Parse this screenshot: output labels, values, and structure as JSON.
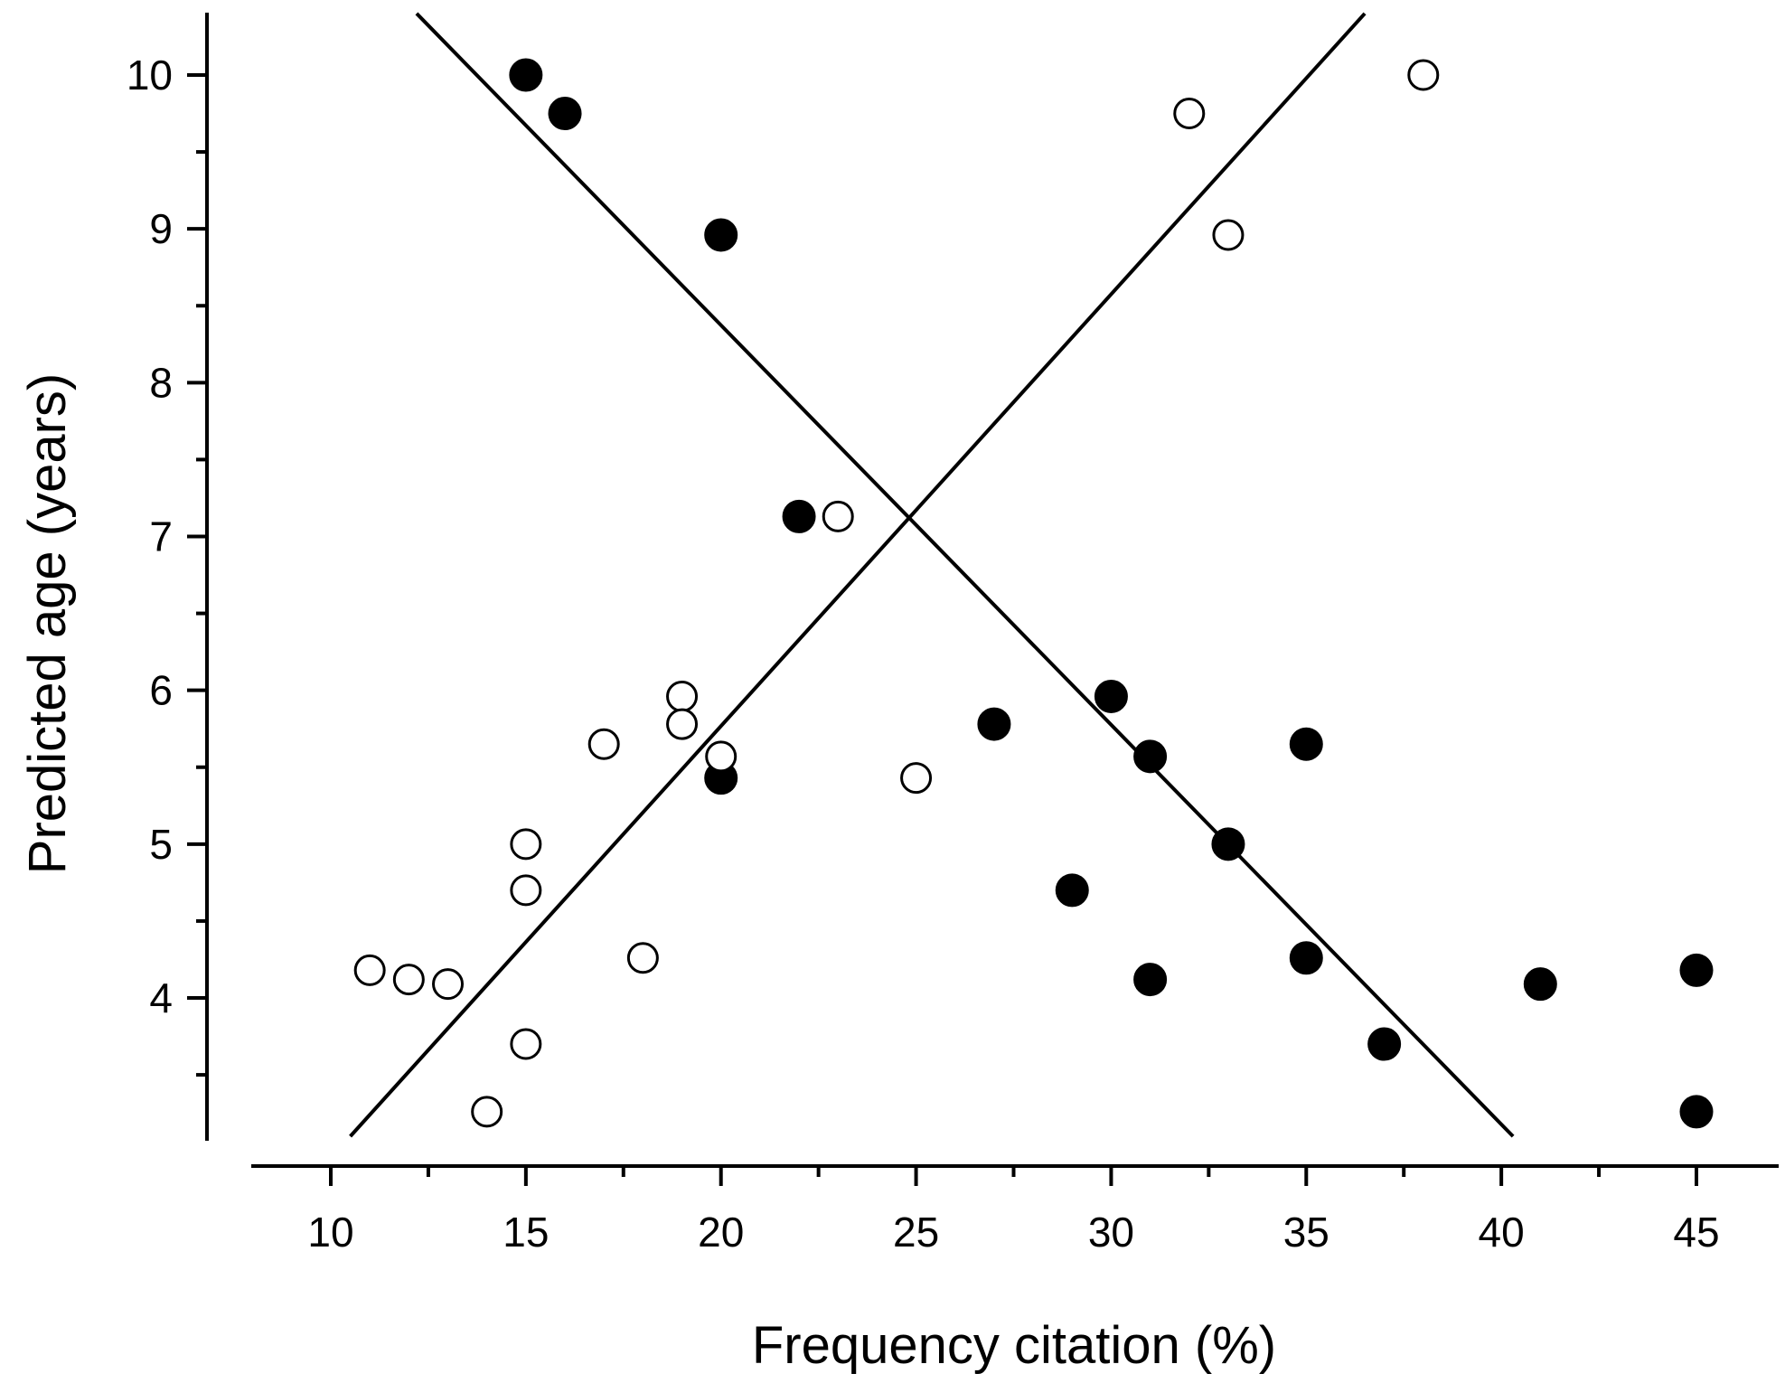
{
  "chart_data": {
    "type": "scatter",
    "xlabel": "Frequency citation (%)",
    "ylabel": "Predicted age (years)",
    "xlim": [
      8.2,
      47.5
    ],
    "ylim": [
      3.1,
      10.45
    ],
    "x_ticks": [
      10,
      15,
      20,
      25,
      30,
      35,
      40,
      45
    ],
    "x_tick_labels": [
      "10",
      "15",
      "20",
      "25",
      "30",
      "35",
      "40",
      "45"
    ],
    "y_ticks": [
      4,
      5,
      6,
      7,
      8,
      9,
      10
    ],
    "y_tick_labels": [
      "4",
      "5",
      "6",
      "7",
      "8",
      "9",
      "10"
    ],
    "grid": false,
    "legend": "none",
    "series": [
      {
        "marker": "filled-circle",
        "color": "#000000",
        "points": [
          {
            "x": 15,
            "y": 10.0
          },
          {
            "x": 16,
            "y": 9.75
          },
          {
            "x": 20,
            "y": 8.96
          },
          {
            "x": 22,
            "y": 7.13
          },
          {
            "x": 20,
            "y": 5.43
          },
          {
            "x": 27,
            "y": 5.78
          },
          {
            "x": 30,
            "y": 5.96
          },
          {
            "x": 31,
            "y": 5.57
          },
          {
            "x": 35,
            "y": 5.65
          },
          {
            "x": 33,
            "y": 5.0
          },
          {
            "x": 29,
            "y": 4.7
          },
          {
            "x": 31,
            "y": 4.12
          },
          {
            "x": 35,
            "y": 4.26
          },
          {
            "x": 37,
            "y": 3.7
          },
          {
            "x": 41,
            "y": 4.09
          },
          {
            "x": 45,
            "y": 4.18
          },
          {
            "x": 45,
            "y": 3.26
          }
        ],
        "fit_line": [
          {
            "x": 12.2,
            "y": 10.4
          },
          {
            "x": 40.3,
            "y": 3.1
          }
        ]
      },
      {
        "marker": "open-circle",
        "color": "#000000",
        "points": [
          {
            "x": 38,
            "y": 10.0
          },
          {
            "x": 32,
            "y": 9.75
          },
          {
            "x": 33,
            "y": 8.96
          },
          {
            "x": 23,
            "y": 7.13
          },
          {
            "x": 19,
            "y": 5.96
          },
          {
            "x": 19,
            "y": 5.78
          },
          {
            "x": 17,
            "y": 5.65
          },
          {
            "x": 20,
            "y": 5.57
          },
          {
            "x": 25,
            "y": 5.43
          },
          {
            "x": 15,
            "y": 5.0
          },
          {
            "x": 15,
            "y": 4.7
          },
          {
            "x": 18,
            "y": 4.26
          },
          {
            "x": 11,
            "y": 4.18
          },
          {
            "x": 12,
            "y": 4.12
          },
          {
            "x": 13,
            "y": 4.09
          },
          {
            "x": 15,
            "y": 3.7
          },
          {
            "x": 14,
            "y": 3.26
          }
        ],
        "fit_line": [
          {
            "x": 10.5,
            "y": 3.1
          },
          {
            "x": 36.5,
            "y": 10.4
          }
        ]
      }
    ]
  }
}
